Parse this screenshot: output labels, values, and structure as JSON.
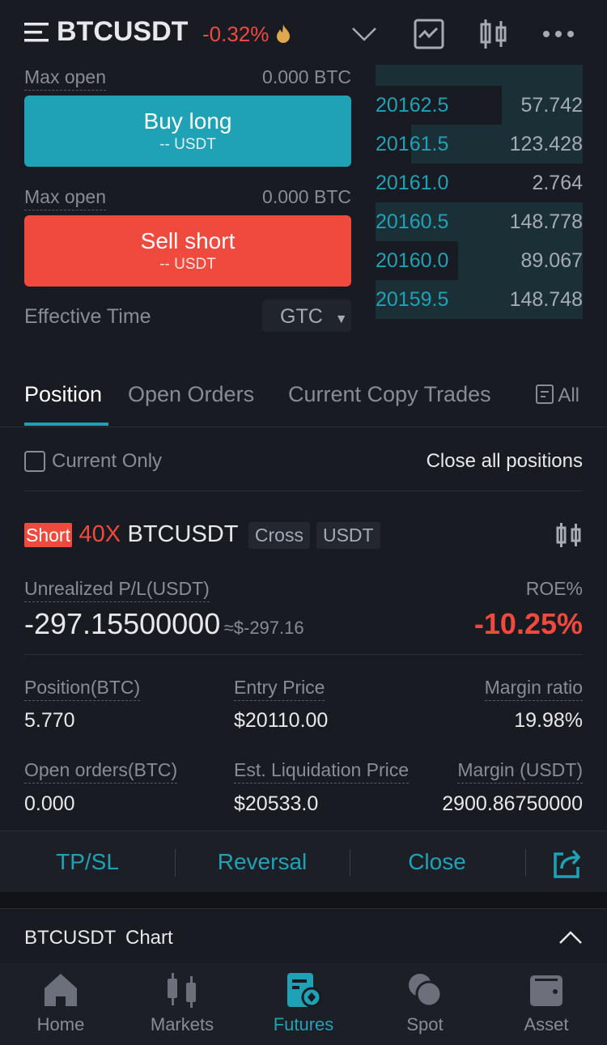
{
  "header": {
    "symbol": "BTCUSDT",
    "change": "-0.32%",
    "icons": [
      "menu-icon",
      "fire-icon",
      "chevron-down-icon",
      "chart-icon",
      "candlestick-icon",
      "more-icon"
    ]
  },
  "trade": {
    "max_open_label": "Max open",
    "buy_max_open": "0.000 BTC",
    "sell_max_open": "0.000 BTC",
    "buy_label": "Buy long",
    "buy_sub": "-- USDT",
    "sell_label": "Sell short",
    "sell_sub": "-- USDT",
    "effective_time_label": "Effective Time",
    "effective_time_value": "GTC"
  },
  "orderbook": [
    {
      "price": "20162.5",
      "qty": "57.742",
      "depth": 0.39
    },
    {
      "price": "20161.5",
      "qty": "123.428",
      "depth": 0.83
    },
    {
      "price": "20161.0",
      "qty": "2.764",
      "depth": 0.0
    },
    {
      "price": "20160.5",
      "qty": "148.778",
      "depth": 1.0
    },
    {
      "price": "20160.0",
      "qty": "89.067",
      "depth": 0.6
    },
    {
      "price": "20159.5",
      "qty": "148.748",
      "depth": 1.0
    }
  ],
  "tabs": {
    "items": [
      "Position",
      "Open Orders",
      "Current Copy Trades"
    ],
    "active": "Position",
    "all": "All"
  },
  "filter": {
    "current_only": "Current Only",
    "close_all": "Close all positions"
  },
  "position": {
    "side": "Short",
    "leverage": "40X",
    "symbol": "BTCUSDT",
    "mode": "Cross",
    "margin_asset": "USDT",
    "upl_label": "Unrealized P/L(USDT)",
    "upl": "-297.15500000",
    "upl_approx": "≈$-297.16",
    "roe_label": "ROE%",
    "roe": "-10.25%",
    "fields": [
      {
        "label": "Position(BTC)",
        "value": "5.770"
      },
      {
        "label": "Entry Price",
        "value": "$20110.00"
      },
      {
        "label": "Margin ratio",
        "value": "19.98%"
      },
      {
        "label": "Open orders(BTC)",
        "value": "0.000"
      },
      {
        "label": "Est. Liquidation Price",
        "value": "$20533.0"
      },
      {
        "label": "Margin (USDT)",
        "value": "2900.86750000"
      }
    ],
    "actions": [
      "TP/SL",
      "Reversal",
      "Close"
    ]
  },
  "chart_bar": {
    "symbol": "BTCUSDT",
    "label": "Chart"
  },
  "nav": {
    "items": [
      "Home",
      "Markets",
      "Futures",
      "Spot",
      "Asset"
    ],
    "active": "Futures"
  },
  "colors": {
    "accent": "#1fa2b6",
    "sell": "#f04a3e",
    "background": "#181b22"
  }
}
